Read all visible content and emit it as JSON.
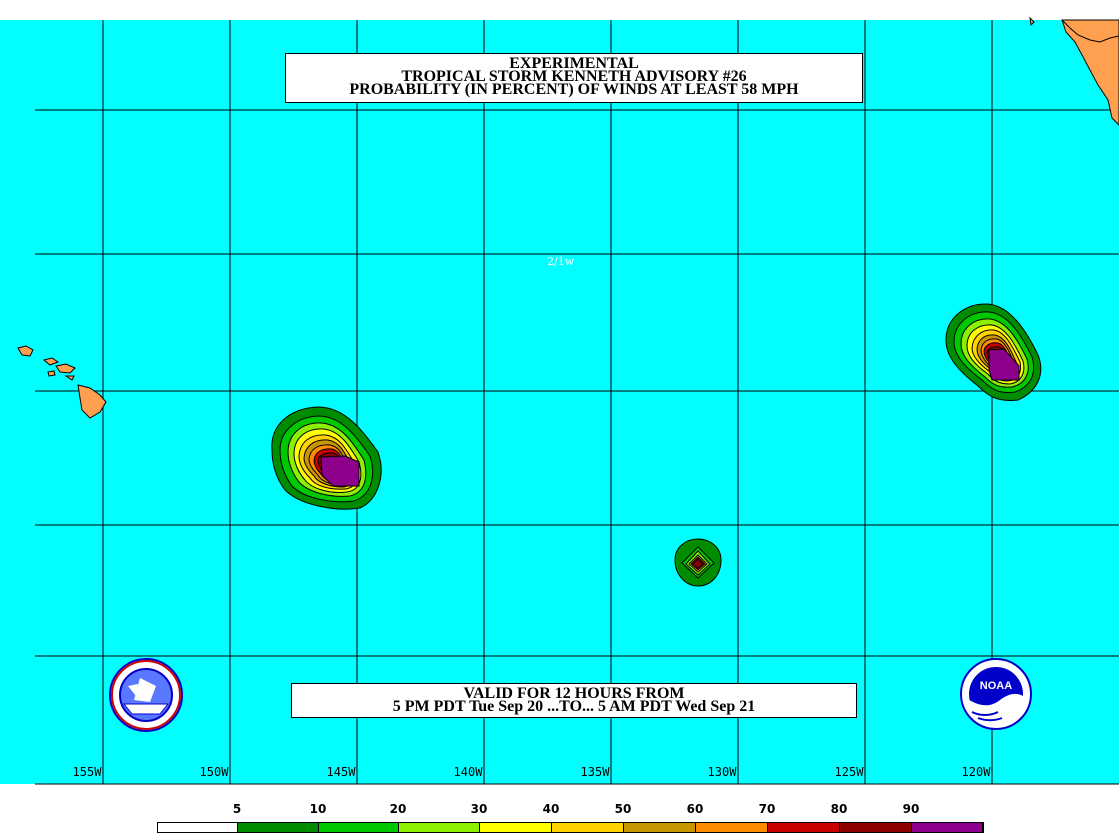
{
  "title": {
    "line1": "EXPERIMENTAL",
    "line2": "TROPICAL STORM KENNETH ADVISORY #26",
    "line3": "PROBABILITY (IN PERCENT) OF WINDS AT LEAST 58 MPH"
  },
  "valid": {
    "line1": "VALID FOR 12 HOURS FROM",
    "line2": "5 PM PDT Tue Sep 20 ...TO... 5 AM PDT Wed Sep 21"
  },
  "map_note": "2/1w",
  "longitude_labels": [
    "155W",
    "150W",
    "145W",
    "140W",
    "135W",
    "130W",
    "125W",
    "120W"
  ],
  "legend": {
    "thresholds": [
      "5",
      "10",
      "20",
      "30",
      "40",
      "50",
      "60",
      "70",
      "80",
      "90"
    ],
    "colors": [
      "#ffffff",
      "#008c00",
      "#00c800",
      "#8cf000",
      "#ffff00",
      "#ffd200",
      "#c89600",
      "#ff8c00",
      "#c80000",
      "#8c0000",
      "#8c008c"
    ]
  },
  "colors": {
    "ocean": "#00ffff",
    "land": "#ffa050",
    "grid": "#000000"
  },
  "logos": {
    "left": "nws-logo",
    "right": "noaa-logo",
    "right_text": "NOAA"
  }
}
